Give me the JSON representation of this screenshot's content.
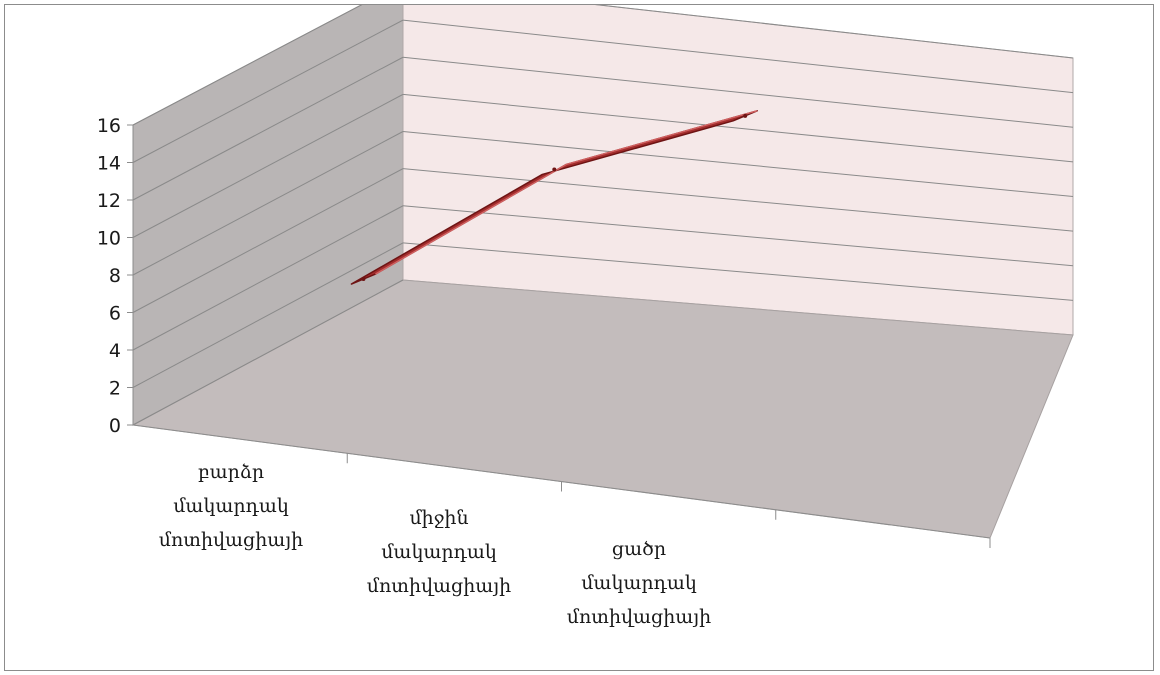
{
  "chart_data": {
    "type": "line",
    "style": "3d",
    "categories": [
      [
        "բարձր",
        "մակարդակ",
        "մոտիվացիայի"
      ],
      [
        "միջին",
        "մակարդակ",
        "մոտիվացիայի"
      ],
      [
        "ցածր",
        "մակարդակ",
        "մոտիվացիայի"
      ]
    ],
    "series": [
      {
        "values": [
          4.5,
          11.5,
          15.5
        ]
      }
    ],
    "ylim": [
      0,
      16
    ],
    "yticks": [
      0,
      2,
      4,
      6,
      8,
      10,
      12,
      14,
      16
    ],
    "grid": true,
    "legend": "none",
    "title": "",
    "xlabel": "",
    "ylabel": "",
    "colors": {
      "line": "#a32c2c",
      "line_dark": "#6e1414",
      "back_wall": "#f5e8e8",
      "side_wall": "#b9b5b5",
      "floor": "#c3bcbc",
      "gridline": "#8a8a8a",
      "axis": "#8c8c8c"
    }
  }
}
